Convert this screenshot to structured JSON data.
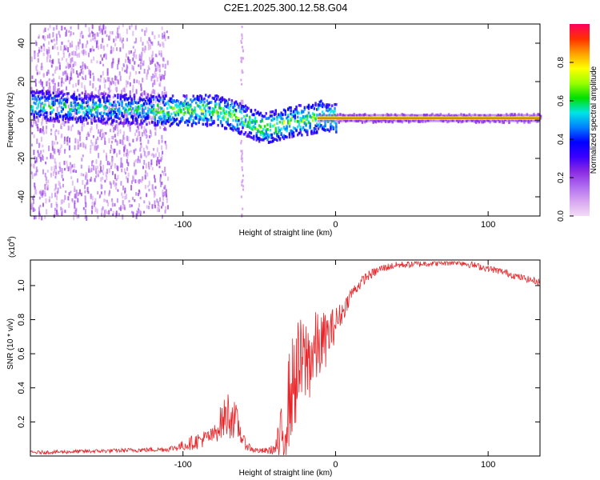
{
  "figure_title": "C2E1.2025.300.12.58.G04",
  "colors": {
    "snr_line": "#e8262a",
    "axis": "#000000",
    "cmap": [
      "#f3dcf7",
      "#d7a6f0",
      "#b06cf0",
      "#8a2be2",
      "#3b00ff",
      "#0000ff",
      "#0080ff",
      "#00e5e5",
      "#00e000",
      "#9aff00",
      "#ffff00",
      "#ffa000",
      "#ff3000",
      "#ff0060"
    ]
  },
  "chart_data": [
    {
      "type": "heatmap",
      "title": "C2E1.2025.300.12.58.G04",
      "xlabel": "Height of straight line (km)",
      "ylabel": "Frequency (Hz)",
      "xlim": [
        -200,
        134
      ],
      "ylim": [
        -50,
        50
      ],
      "x_ticks": [
        -100,
        0,
        100
      ],
      "y_ticks": [
        -40,
        -20,
        0,
        20,
        40
      ],
      "ridge_frequency": {
        "x": [
          -200,
          -180,
          -160,
          -140,
          -120,
          -100,
          -90,
          -80,
          -70,
          -60,
          -55,
          -50,
          -45,
          -40,
          -35,
          -30,
          -25,
          -20,
          -15,
          -10,
          -5,
          0,
          50,
          100,
          134
        ],
        "y": [
          8,
          7,
          6,
          6,
          5,
          5,
          5,
          5,
          3,
          0,
          -2,
          -4,
          -4,
          -3,
          -2,
          -1,
          0,
          0,
          1,
          2,
          1,
          1,
          1,
          1,
          1
        ]
      },
      "colorbar": {
        "label": "Normalized spectral amplitude",
        "range": [
          0,
          1
        ],
        "ticks": [
          0.0,
          0.2,
          0.4,
          0.6,
          0.8
        ]
      }
    },
    {
      "type": "line",
      "xlabel": "Height of straight line (km)",
      "ylabel": "SNR (10 * v/v)",
      "multiplier_label": "(x10",
      "multiplier_exp": "4",
      "multiplier_close": ")",
      "xlim": [
        -200,
        134
      ],
      "ylim": [
        0,
        1.15
      ],
      "x_ticks": [
        -100,
        0,
        100
      ],
      "y_ticks": [
        0.2,
        0.4,
        0.6,
        0.8,
        1.0
      ],
      "series": [
        {
          "name": "SNR",
          "x": [
            -200,
            -150,
            -110,
            -100,
            -90,
            -80,
            -75,
            -70,
            -65,
            -60,
            -55,
            -50,
            -45,
            -40,
            -35,
            -30,
            -25,
            -20,
            -15,
            -10,
            -5,
            0,
            5,
            10,
            20,
            30,
            40,
            60,
            80,
            90,
            100,
            110,
            120,
            134
          ],
          "y": [
            0.02,
            0.03,
            0.04,
            0.06,
            0.09,
            0.12,
            0.2,
            0.25,
            0.2,
            0.08,
            0.04,
            0.03,
            0.03,
            0.04,
            0.1,
            0.35,
            0.5,
            0.55,
            0.6,
            0.65,
            0.7,
            0.78,
            0.85,
            0.95,
            1.05,
            1.1,
            1.12,
            1.13,
            1.14,
            1.12,
            1.1,
            1.08,
            1.05,
            1.02
          ],
          "noise": [
            0.01,
            0.012,
            0.015,
            0.03,
            0.05,
            0.05,
            0.1,
            0.15,
            0.1,
            0.04,
            0.02,
            0.015,
            0.02,
            0.03,
            0.22,
            0.3,
            0.3,
            0.28,
            0.25,
            0.2,
            0.15,
            0.1,
            0.06,
            0.04,
            0.03,
            0.025,
            0.02,
            0.02,
            0.02,
            0.02,
            0.02,
            0.02,
            0.02,
            0.02
          ]
        }
      ]
    }
  ]
}
